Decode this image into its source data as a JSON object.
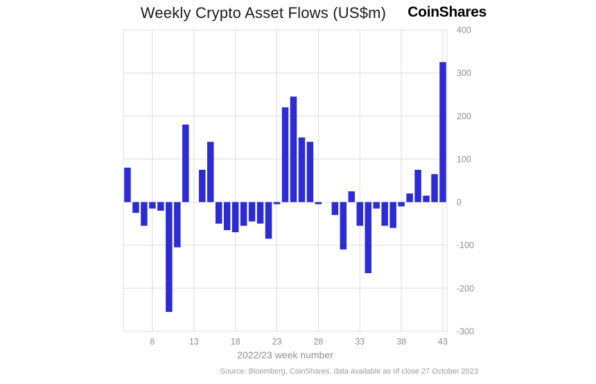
{
  "header": {
    "logo": "CoinShares"
  },
  "chart_data": {
    "type": "bar",
    "title": "Weekly Crypto Asset Flows (US$m)",
    "xlabel": "2022/23 week number",
    "ylabel": "",
    "x": [
      5,
      6,
      7,
      8,
      9,
      10,
      11,
      12,
      13,
      14,
      15,
      16,
      17,
      18,
      19,
      20,
      21,
      22,
      23,
      24,
      25,
      26,
      27,
      28,
      29,
      30,
      31,
      32,
      33,
      34,
      35,
      36,
      37,
      38,
      39,
      40,
      41,
      42,
      43
    ],
    "values": [
      80,
      -25,
      -55,
      -15,
      -20,
      -255,
      -105,
      180,
      0,
      75,
      140,
      -50,
      -65,
      -70,
      -55,
      -45,
      -50,
      -85,
      -5,
      220,
      245,
      150,
      140,
      -5,
      0,
      -30,
      -110,
      25,
      -55,
      -165,
      -15,
      -55,
      -60,
      -10,
      20,
      75,
      15,
      65,
      325
    ],
    "xticks": [
      8,
      13,
      18,
      23,
      28,
      33,
      38,
      43
    ],
    "yticks": [
      400,
      300,
      200,
      100,
      0,
      -100,
      -200,
      -300
    ],
    "ylim": [
      -300,
      400
    ],
    "grid": true,
    "legend": "none",
    "bar_color": "#2c2bd4",
    "grid_color": "#dcdcdc"
  },
  "footer": {
    "source": "Source: Bloomberg, CoinShares, data available as of close 27 October 2023"
  }
}
